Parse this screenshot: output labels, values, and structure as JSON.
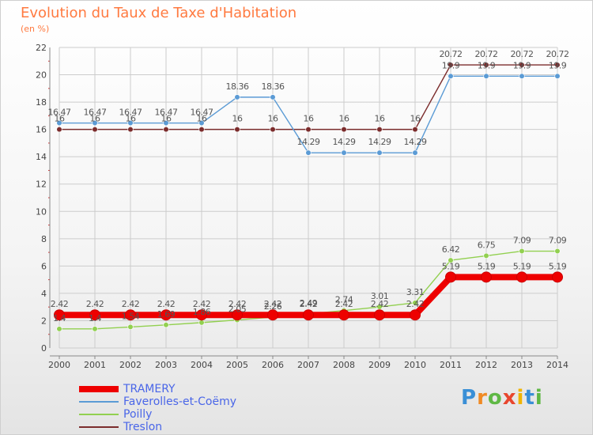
{
  "title": "Evolution du Taux de Taxe d'Habitation",
  "subtitle": "(en %)",
  "logo_text": "Proxiti",
  "colors": {
    "title": "#ff7a40",
    "grid": "#cccccc",
    "axis": "#888888",
    "legend_text": "#4a66e8"
  },
  "chart_data": {
    "type": "line",
    "title": "Evolution du Taux de Taxe d'Habitation",
    "ylabel": "(en %)",
    "xlabel": "",
    "ylim": [
      0,
      22
    ],
    "yticks": [
      0,
      2,
      4,
      6,
      8,
      10,
      12,
      14,
      16,
      18,
      20,
      22
    ],
    "grid": true,
    "legend_position": "bottom-left",
    "x": [
      "2000",
      "2001",
      "2002",
      "2003",
      "2004",
      "2005",
      "2006",
      "2007",
      "2008",
      "2009",
      "2010",
      "2011",
      "2012",
      "2013",
      "2014"
    ],
    "series": [
      {
        "name": "TRAMERY",
        "color": "#ee0000",
        "values": [
          2.42,
          2.42,
          2.42,
          2.42,
          2.42,
          2.42,
          2.42,
          2.42,
          2.42,
          2.42,
          2.42,
          5.19,
          5.19,
          5.19,
          5.19
        ],
        "labels": [
          "2.42",
          "2.42",
          "2.42",
          "2.42",
          "2.42",
          "2.42",
          "2.42",
          "2.42",
          "2.42",
          "2.42",
          "2.42",
          "5.19",
          "5.19",
          "5.19",
          "5.19"
        ]
      },
      {
        "name": "Faverolles-et-Coëmy",
        "color": "#5b9bd5",
        "values": [
          16.47,
          16.47,
          16.47,
          16.47,
          16.47,
          18.36,
          18.36,
          14.29,
          14.29,
          14.29,
          14.29,
          19.9,
          19.9,
          19.9,
          19.9
        ],
        "labels": [
          "16.47",
          "16.47",
          "16.47",
          "16.47",
          "16.47",
          "18.36",
          "18.36",
          "14.29",
          "14.29",
          "14.29",
          "14.29",
          "19.9",
          "19.9",
          "19.9",
          "19.9"
        ]
      },
      {
        "name": "Poilly",
        "color": "#92d050",
        "values": [
          1.4,
          1.4,
          1.54,
          1.69,
          1.86,
          2.05,
          2.26,
          2.49,
          2.74,
          3.01,
          3.31,
          6.42,
          6.75,
          7.09,
          7.09
        ],
        "labels": [
          "1.4",
          "1.4",
          "1.54",
          "1.69",
          "1.86",
          "2.05",
          "2.26",
          "2.49",
          "2.74",
          "3.01",
          "3.31",
          "6.42",
          "6.75",
          "7.09",
          "7.09"
        ]
      },
      {
        "name": "Treslon",
        "color": "#7b2c2c",
        "values": [
          16,
          16,
          16,
          16,
          16,
          16,
          16,
          16,
          16,
          16,
          16,
          20.72,
          20.72,
          20.72,
          20.72
        ],
        "labels": [
          "16",
          "16",
          "16",
          "16",
          "16",
          "16",
          "16",
          "16",
          "16",
          "16",
          "16",
          "20.72",
          "20.72",
          "20.72",
          "20.72"
        ]
      }
    ]
  }
}
